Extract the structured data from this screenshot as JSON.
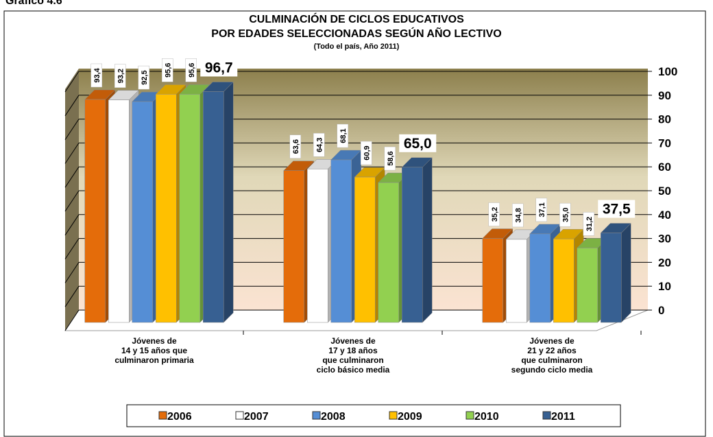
{
  "chart_data": {
    "type": "bar",
    "label": "Gráfico 4.6",
    "title": "CULMINACIÓN DE CICLOS EDUCATIVOS\nPOR EDADES SELECCIONADAS SEGÚN AÑO LECTIVO",
    "subtitle": "(Todo el país, Año 2011)",
    "categories": [
      "Jóvenes de\n14 y 15 años que\nculminaron primaria",
      "Jóvenes de\n17 y 18 años\nque culminaron\nciclo básico media",
      "Jóvenes de\n21 y 22 años\nque culminaron\nsegundo ciclo media"
    ],
    "series": [
      {
        "name": "2006",
        "color": "#e46c0a",
        "values": [
          93.4,
          63.6,
          35.2
        ],
        "value_labels": [
          "93,4",
          "63,6",
          "35,2"
        ]
      },
      {
        "name": "2007",
        "color": "#ffffff",
        "values": [
          93.2,
          64.3,
          34.8
        ],
        "value_labels": [
          "93,2",
          "64,3",
          "34,8"
        ]
      },
      {
        "name": "2008",
        "color": "#558ed5",
        "values": [
          92.5,
          68.1,
          37.1
        ],
        "value_labels": [
          "92,5",
          "68,1",
          "37,1"
        ]
      },
      {
        "name": "2009",
        "color": "#ffc000",
        "values": [
          95.6,
          60.9,
          35.0
        ],
        "value_labels": [
          "95,6",
          "60,9",
          "35,0"
        ]
      },
      {
        "name": "2010",
        "color": "#92d050",
        "values": [
          95.6,
          58.6,
          31.2
        ],
        "value_labels": [
          "95,6",
          "58,6",
          "31,2"
        ]
      },
      {
        "name": "2011",
        "color": "#376092",
        "values": [
          96.7,
          65.0,
          37.5
        ],
        "value_labels": [
          "96,7",
          "65,0",
          "37,5"
        ]
      }
    ],
    "ylim": [
      0,
      100
    ],
    "yticks": [
      0,
      10,
      20,
      30,
      40,
      50,
      60,
      70,
      80,
      90,
      100
    ],
    "grid": true
  }
}
